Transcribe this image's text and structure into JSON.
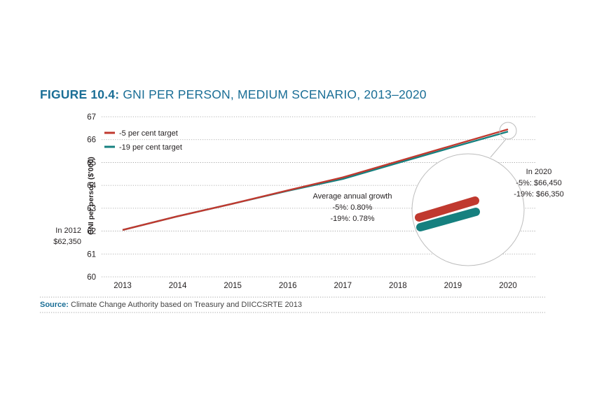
{
  "figure": {
    "label": "FIGURE 10.4:",
    "title": "GNI PER PERSON, MEDIUM SCENARIO, 2013–2020"
  },
  "source": {
    "label": "Source:",
    "text": "Climate Change Authority based on Treasury and DIICCSRTE 2013"
  },
  "annotations": {
    "start_line1": "In 2012",
    "start_line2": "$62,350",
    "growth_title": "Average annual growth",
    "growth_a": "-5%: 0.80%",
    "growth_b": "-19%: 0.78%",
    "end_title": "In 2020",
    "end_a": "-5%: $66,450",
    "end_b": "-19%: $66,350"
  },
  "colors": {
    "series_5": "#c0392f",
    "series_19": "#16807f",
    "title": "#1a6e96",
    "grid": "#9a9a9a"
  },
  "chart_data": {
    "type": "line",
    "title": "GNI PER PERSON, MEDIUM SCENARIO, 2013–2020",
    "xlabel": "",
    "ylabel": "GNI per person ($'000)",
    "x": [
      "2013",
      "2014",
      "2015",
      "2016",
      "2017",
      "2018",
      "2019",
      "2020"
    ],
    "ylim": [
      60,
      67
    ],
    "yticks": [
      60,
      61,
      62,
      63,
      64,
      65,
      66,
      67
    ],
    "grid": "horizontal dotted",
    "legend": "top-left",
    "series": [
      {
        "name": "-5 per cent target",
        "color": "#c0392f",
        "values": [
          62.05,
          62.65,
          63.2,
          63.78,
          64.35,
          65.05,
          65.75,
          66.45
        ]
      },
      {
        "name": "-19 per cent target",
        "color": "#16807f",
        "values": [
          62.05,
          62.65,
          63.2,
          63.76,
          64.28,
          64.98,
          65.67,
          66.35
        ]
      }
    ]
  }
}
